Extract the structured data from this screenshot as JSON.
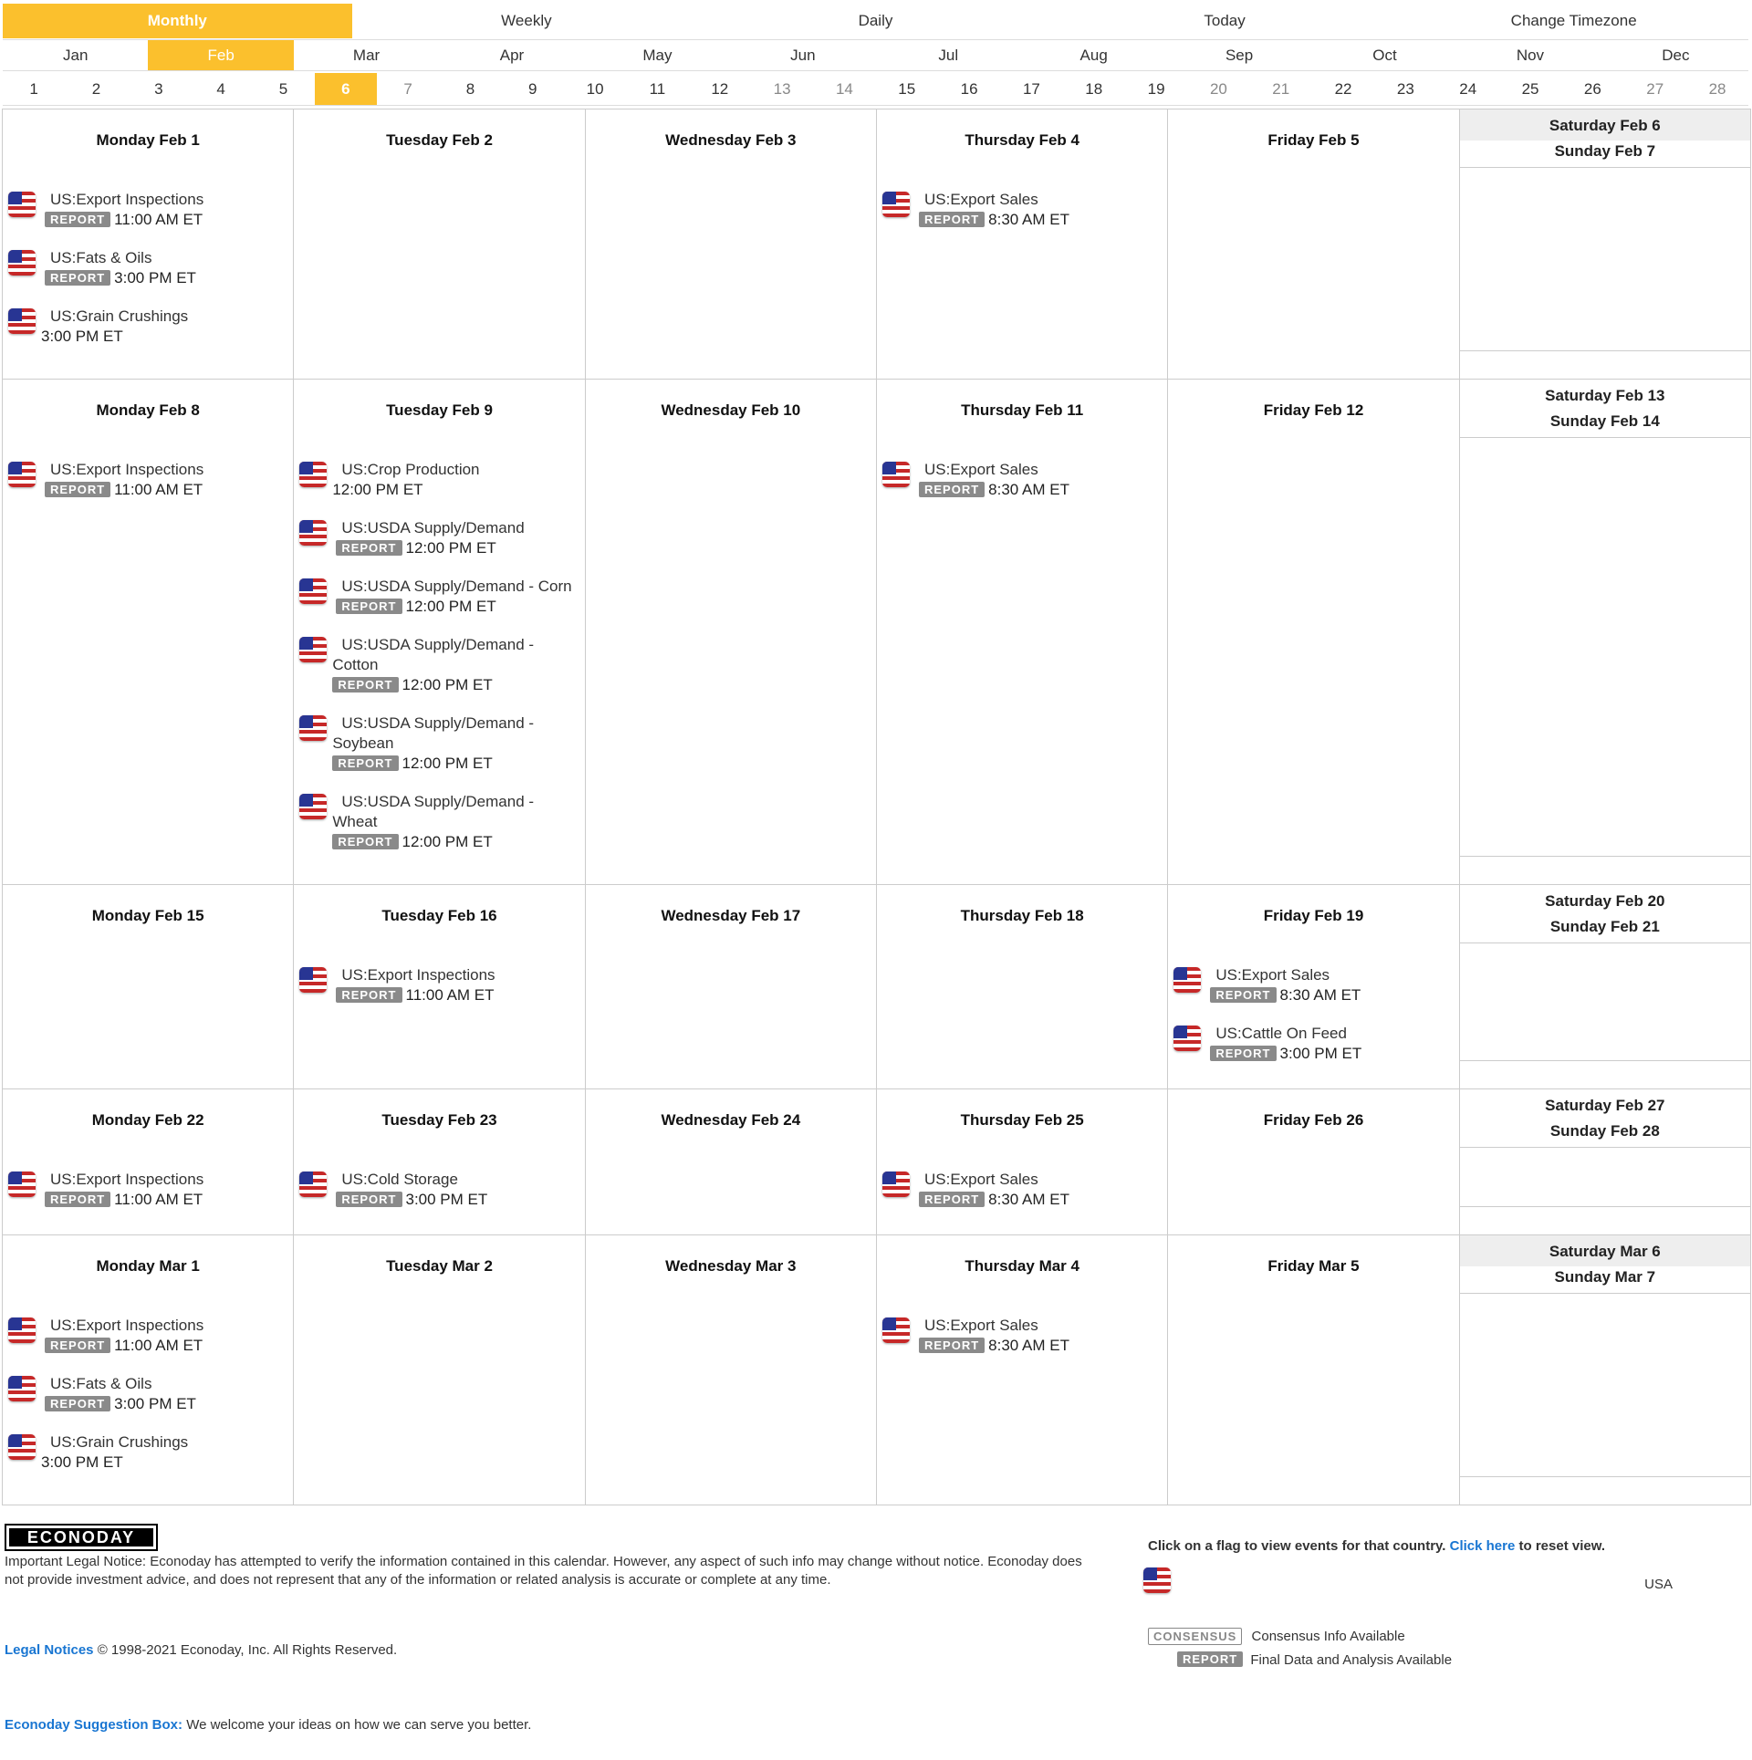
{
  "views": [
    "Monthly",
    "Weekly",
    "Daily",
    "Today",
    "Change Timezone"
  ],
  "active_view": "Monthly",
  "months": [
    "Jan",
    "Feb",
    "Mar",
    "Apr",
    "May",
    "Jun",
    "Jul",
    "Aug",
    "Sep",
    "Oct",
    "Nov",
    "Dec"
  ],
  "active_month": "Feb",
  "days": [
    "1",
    "2",
    "3",
    "4",
    "5",
    "6",
    "7",
    "8",
    "9",
    "10",
    "11",
    "12",
    "13",
    "14",
    "15",
    "16",
    "17",
    "18",
    "19",
    "20",
    "21",
    "22",
    "23",
    "24",
    "25",
    "26",
    "27",
    "28"
  ],
  "active_day": "6",
  "badge_report": "REPORT",
  "weeks": [
    {
      "days": [
        {
          "label": "Monday Feb 1",
          "events": [
            {
              "title": "US:Export Inspections",
              "time": "11:00 AM ET",
              "badge": true
            },
            {
              "title": "US:Fats & Oils",
              "time": "3:00 PM ET",
              "badge": true
            },
            {
              "title": "US:Grain Crushings",
              "time": "3:00 PM ET",
              "badge": false
            }
          ]
        },
        {
          "label": "Tuesday Feb 2",
          "events": []
        },
        {
          "label": "Wednesday Feb 3",
          "events": []
        },
        {
          "label": "Thursday Feb 4",
          "events": [
            {
              "title": "US:Export Sales",
              "time": "8:30 AM ET",
              "badge": true
            }
          ]
        },
        {
          "label": "Friday Feb 5",
          "events": []
        }
      ],
      "saturday": "Saturday Feb 6",
      "sunday": "Sunday Feb 7",
      "saturday_shaded": true
    },
    {
      "days": [
        {
          "label": "Monday Feb 8",
          "events": [
            {
              "title": "US:Export Inspections",
              "time": "11:00 AM ET",
              "badge": true
            }
          ]
        },
        {
          "label": "Tuesday Feb 9",
          "events": [
            {
              "title": "US:Crop Production",
              "time": "12:00 PM ET",
              "badge": false
            },
            {
              "title": "US:USDA Supply/Demand",
              "time": "12:00 PM ET",
              "badge": true
            },
            {
              "title": "US:USDA Supply/Demand - Corn",
              "time": "12:00 PM ET",
              "badge": true
            },
            {
              "title": "US:USDA Supply/Demand -",
              "wrap": "Cotton",
              "time": "12:00 PM ET",
              "badge": true
            },
            {
              "title": "US:USDA Supply/Demand -",
              "wrap": "Soybean",
              "time": "12:00 PM ET",
              "badge": true
            },
            {
              "title": "US:USDA Supply/Demand -",
              "wrap": "Wheat",
              "time": "12:00 PM ET",
              "badge": true
            }
          ]
        },
        {
          "label": "Wednesday Feb 10",
          "events": []
        },
        {
          "label": "Thursday Feb 11",
          "events": [
            {
              "title": "US:Export Sales",
              "time": "8:30 AM ET",
              "badge": true
            }
          ]
        },
        {
          "label": "Friday Feb 12",
          "events": []
        }
      ],
      "saturday": "Saturday Feb 13",
      "sunday": "Sunday Feb 14",
      "saturday_shaded": false
    },
    {
      "days": [
        {
          "label": "Monday Feb 15",
          "events": []
        },
        {
          "label": "Tuesday Feb 16",
          "events": [
            {
              "title": "US:Export Inspections",
              "time": "11:00 AM ET",
              "badge": true
            }
          ]
        },
        {
          "label": "Wednesday Feb 17",
          "events": []
        },
        {
          "label": "Thursday Feb 18",
          "events": []
        },
        {
          "label": "Friday Feb 19",
          "events": [
            {
              "title": "US:Export Sales",
              "time": "8:30 AM ET",
              "badge": true
            },
            {
              "title": "US:Cattle On Feed",
              "time": "3:00 PM ET",
              "badge": true
            }
          ]
        }
      ],
      "saturday": "Saturday Feb 20",
      "sunday": "Sunday Feb 21",
      "saturday_shaded": false
    },
    {
      "days": [
        {
          "label": "Monday Feb 22",
          "events": [
            {
              "title": "US:Export Inspections",
              "time": "11:00 AM ET",
              "badge": true
            }
          ]
        },
        {
          "label": "Tuesday Feb 23",
          "events": [
            {
              "title": "US:Cold Storage",
              "time": "3:00 PM ET",
              "badge": true
            }
          ]
        },
        {
          "label": "Wednesday Feb 24",
          "events": []
        },
        {
          "label": "Thursday Feb 25",
          "events": [
            {
              "title": "US:Export Sales",
              "time": "8:30 AM ET",
              "badge": true
            }
          ]
        },
        {
          "label": "Friday Feb 26",
          "events": []
        }
      ],
      "saturday": "Saturday Feb 27",
      "sunday": "Sunday Feb 28",
      "saturday_shaded": false
    },
    {
      "days": [
        {
          "label": "Monday Mar 1",
          "events": [
            {
              "title": "US:Export Inspections",
              "time": "11:00 AM ET",
              "badge": true
            },
            {
              "title": "US:Fats & Oils",
              "time": "3:00 PM ET",
              "badge": true
            },
            {
              "title": "US:Grain Crushings",
              "time": "3:00 PM ET",
              "badge": false
            }
          ]
        },
        {
          "label": "Tuesday Mar 2",
          "events": []
        },
        {
          "label": "Wednesday Mar 3",
          "events": []
        },
        {
          "label": "Thursday Mar 4",
          "events": [
            {
              "title": "US:Export Sales",
              "time": "8:30 AM ET",
              "badge": true
            }
          ]
        },
        {
          "label": "Friday Mar 5",
          "events": []
        }
      ],
      "saturday": "Saturday Mar 6",
      "sunday": "Sunday Mar 7",
      "saturday_shaded": true
    }
  ],
  "footer": {
    "logo": "ECONODAY",
    "legal_notice": "Important Legal Notice: Econoday has attempted to verify the information contained in this calendar. However, any aspect of such info may change without notice. Econoday does not provide investment advice, and does not represent that any of the information or related analysis is accurate or complete at any time.",
    "legal_link": "Legal Notices",
    "copyright": "© 1998-2021 Econoday, Inc. All Rights Reserved.",
    "suggest_link": "Econoday Suggestion Box:",
    "suggest_text": "We welcome your ideas on how we can serve you better.",
    "flag_info_pre": "Click on a flag to view events for that country.",
    "flag_info_link": "Click here",
    "flag_info_post": "to reset view.",
    "country": "USA",
    "consensus_badge": "CONSENSUS",
    "consensus_text": "Consensus Info Available",
    "report_badge": "REPORT",
    "report_text": "Final Data and Analysis Available"
  },
  "colors": {
    "accent": "#fbc02d",
    "link": "#1976d2",
    "badge": "#8a8a8a"
  }
}
